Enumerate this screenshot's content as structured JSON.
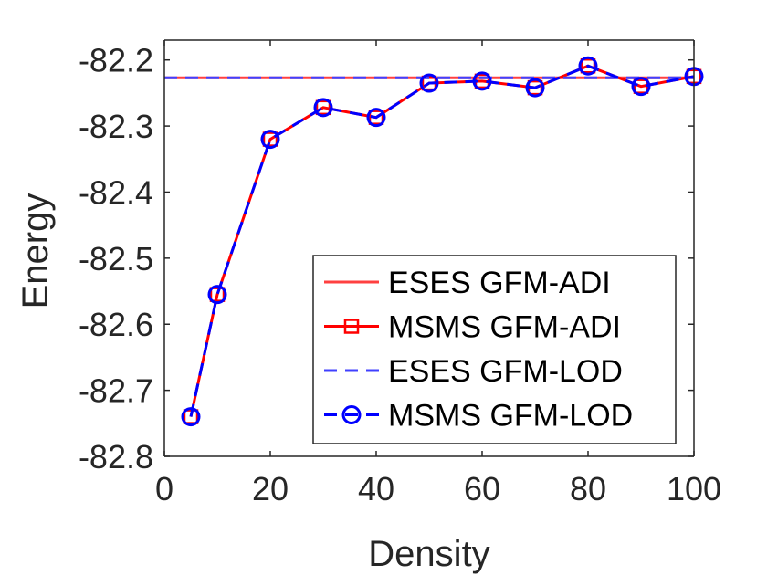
{
  "chart_data": {
    "type": "line",
    "title": "",
    "xlabel": "Density",
    "ylabel": "Energy",
    "xlim": [
      0,
      100
    ],
    "ylim": [
      -82.8,
      -82.17
    ],
    "xticks": [
      0,
      20,
      40,
      60,
      80,
      100
    ],
    "xtick_labels": [
      "0",
      "20",
      "40",
      "60",
      "80",
      "100"
    ],
    "yticks": [
      -82.8,
      -82.7,
      -82.6,
      -82.5,
      -82.4,
      -82.3,
      -82.2
    ],
    "ytick_labels": [
      "-82.8",
      "-82.7",
      "-82.6",
      "-82.5",
      "-82.4",
      "-82.3",
      "-82.2"
    ],
    "grid": false,
    "legend_position": "bottom-right",
    "series": [
      {
        "name": "ESES GFM-ADI",
        "color": "#ff4040",
        "style": "solid",
        "marker": "none",
        "x": [
          0,
          100
        ],
        "y": [
          -82.227,
          -82.227
        ]
      },
      {
        "name": "MSMS GFM-ADI",
        "color": "#ff0000",
        "style": "solid",
        "marker": "square",
        "x": [
          5,
          10,
          20,
          30,
          40,
          50,
          60,
          70,
          80,
          90,
          100
        ],
        "y": [
          -82.74,
          -82.555,
          -82.32,
          -82.272,
          -82.287,
          -82.235,
          -82.232,
          -82.242,
          -82.209,
          -82.24,
          -82.225
        ]
      },
      {
        "name": "ESES GFM-LOD",
        "color": "#4040ff",
        "style": "dashed",
        "marker": "none",
        "x": [
          0,
          100
        ],
        "y": [
          -82.227,
          -82.227
        ]
      },
      {
        "name": "MSMS GFM-LOD",
        "color": "#0000ff",
        "style": "dashed",
        "marker": "circle",
        "x": [
          5,
          10,
          20,
          30,
          40,
          50,
          60,
          70,
          80,
          90,
          100
        ],
        "y": [
          -82.74,
          -82.555,
          -82.32,
          -82.272,
          -82.287,
          -82.235,
          -82.232,
          -82.242,
          -82.209,
          -82.24,
          -82.225
        ]
      }
    ]
  }
}
